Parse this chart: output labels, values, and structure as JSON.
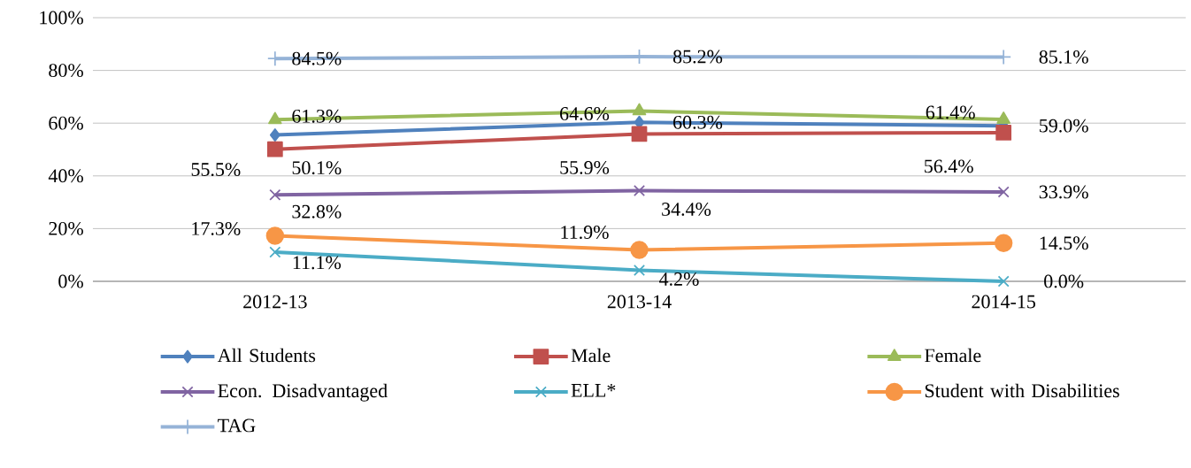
{
  "chart_data": {
    "type": "line",
    "categories": [
      "2012-13",
      "2013-14",
      "2014-15"
    ],
    "ylim": [
      0,
      100
    ],
    "yticks": [
      {
        "value": 0,
        "label": "0%"
      },
      {
        "value": 20,
        "label": "20%"
      },
      {
        "value": 40,
        "label": "40%"
      },
      {
        "value": 60,
        "label": "60%"
      },
      {
        "value": 80,
        "label": "80%"
      },
      {
        "value": 100,
        "label": "100%"
      }
    ],
    "grid": "y",
    "legend": "bottom",
    "line_style": "solid",
    "series": [
      {
        "name": "All Students",
        "color": "#4f81bd",
        "marker": "diamond",
        "values": [
          55.5,
          60.3,
          59.0
        ],
        "value_labels": [
          "55.5%",
          "60.3%",
          "59.0%"
        ]
      },
      {
        "name": "Male",
        "color": "#c0504d",
        "marker": "square",
        "values": [
          50.1,
          55.9,
          56.4
        ],
        "value_labels": [
          "50.1%",
          "55.9%",
          "56.4%"
        ]
      },
      {
        "name": "Female",
        "color": "#9bbb59",
        "marker": "triangle",
        "values": [
          61.3,
          64.6,
          61.4
        ],
        "value_labels": [
          "61.3%",
          "64.6%",
          "61.4%"
        ]
      },
      {
        "name": "Econ. Disadvantaged",
        "color": "#8064a2",
        "marker": "cross",
        "values": [
          32.8,
          34.4,
          33.9
        ],
        "value_labels": [
          "32.8%",
          "34.4%",
          "33.9%"
        ]
      },
      {
        "name": "ELL*",
        "color": "#4bacc6",
        "marker": "cross",
        "values": [
          11.1,
          4.2,
          0.0
        ],
        "value_labels": [
          "11.1%",
          "4.2%",
          "0.0%"
        ]
      },
      {
        "name": "Student with Disabilities",
        "color": "#f79646",
        "marker": "circle",
        "values": [
          17.3,
          11.9,
          14.5
        ],
        "value_labels": [
          "17.3%",
          "11.9%",
          "14.5%"
        ]
      },
      {
        "name": "TAG",
        "color": "#95b3d7",
        "marker": "plus",
        "values": [
          84.5,
          85.2,
          85.1
        ],
        "value_labels": [
          "84.5%",
          "85.2%",
          "85.1%"
        ]
      }
    ]
  }
}
